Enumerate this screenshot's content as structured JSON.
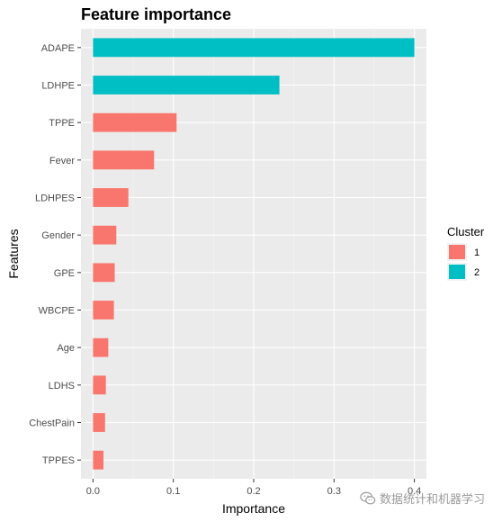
{
  "chart_data": {
    "type": "bar",
    "orientation": "horizontal",
    "title": "Feature importance",
    "xlabel": "Importance",
    "ylabel": "Features",
    "xlim": [
      -0.015,
      0.415
    ],
    "x_ticks": [
      "0.0",
      "0.1",
      "0.2",
      "0.3",
      "0.4"
    ],
    "x_tick_values": [
      0.0,
      0.1,
      0.2,
      0.3,
      0.4
    ],
    "grid": true,
    "legend": {
      "title": "Cluster",
      "position": "right",
      "items": [
        {
          "label": "1",
          "color": "#F8766D"
        },
        {
          "label": "2",
          "color": "#00BFC4"
        }
      ]
    },
    "categories": [
      "ADAPE",
      "LDHPE",
      "TPPE",
      "Fever",
      "LDHPES",
      "Gender",
      "GPE",
      "WBCPE",
      "Age",
      "LDHS",
      "ChestPain",
      "TPPES"
    ],
    "values": [
      0.4,
      0.232,
      0.104,
      0.076,
      0.044,
      0.029,
      0.027,
      0.026,
      0.019,
      0.016,
      0.015,
      0.013
    ],
    "cluster": [
      "2",
      "2",
      "1",
      "1",
      "1",
      "1",
      "1",
      "1",
      "1",
      "1",
      "1",
      "1"
    ]
  },
  "colors": {
    "panel": "#EBEBEB",
    "grid": "#FFFFFF",
    "cluster1": "#F8766D",
    "cluster2": "#00BFC4"
  },
  "watermark": {
    "text": "数据统计和机器学习",
    "icon": "wechat-icon"
  }
}
